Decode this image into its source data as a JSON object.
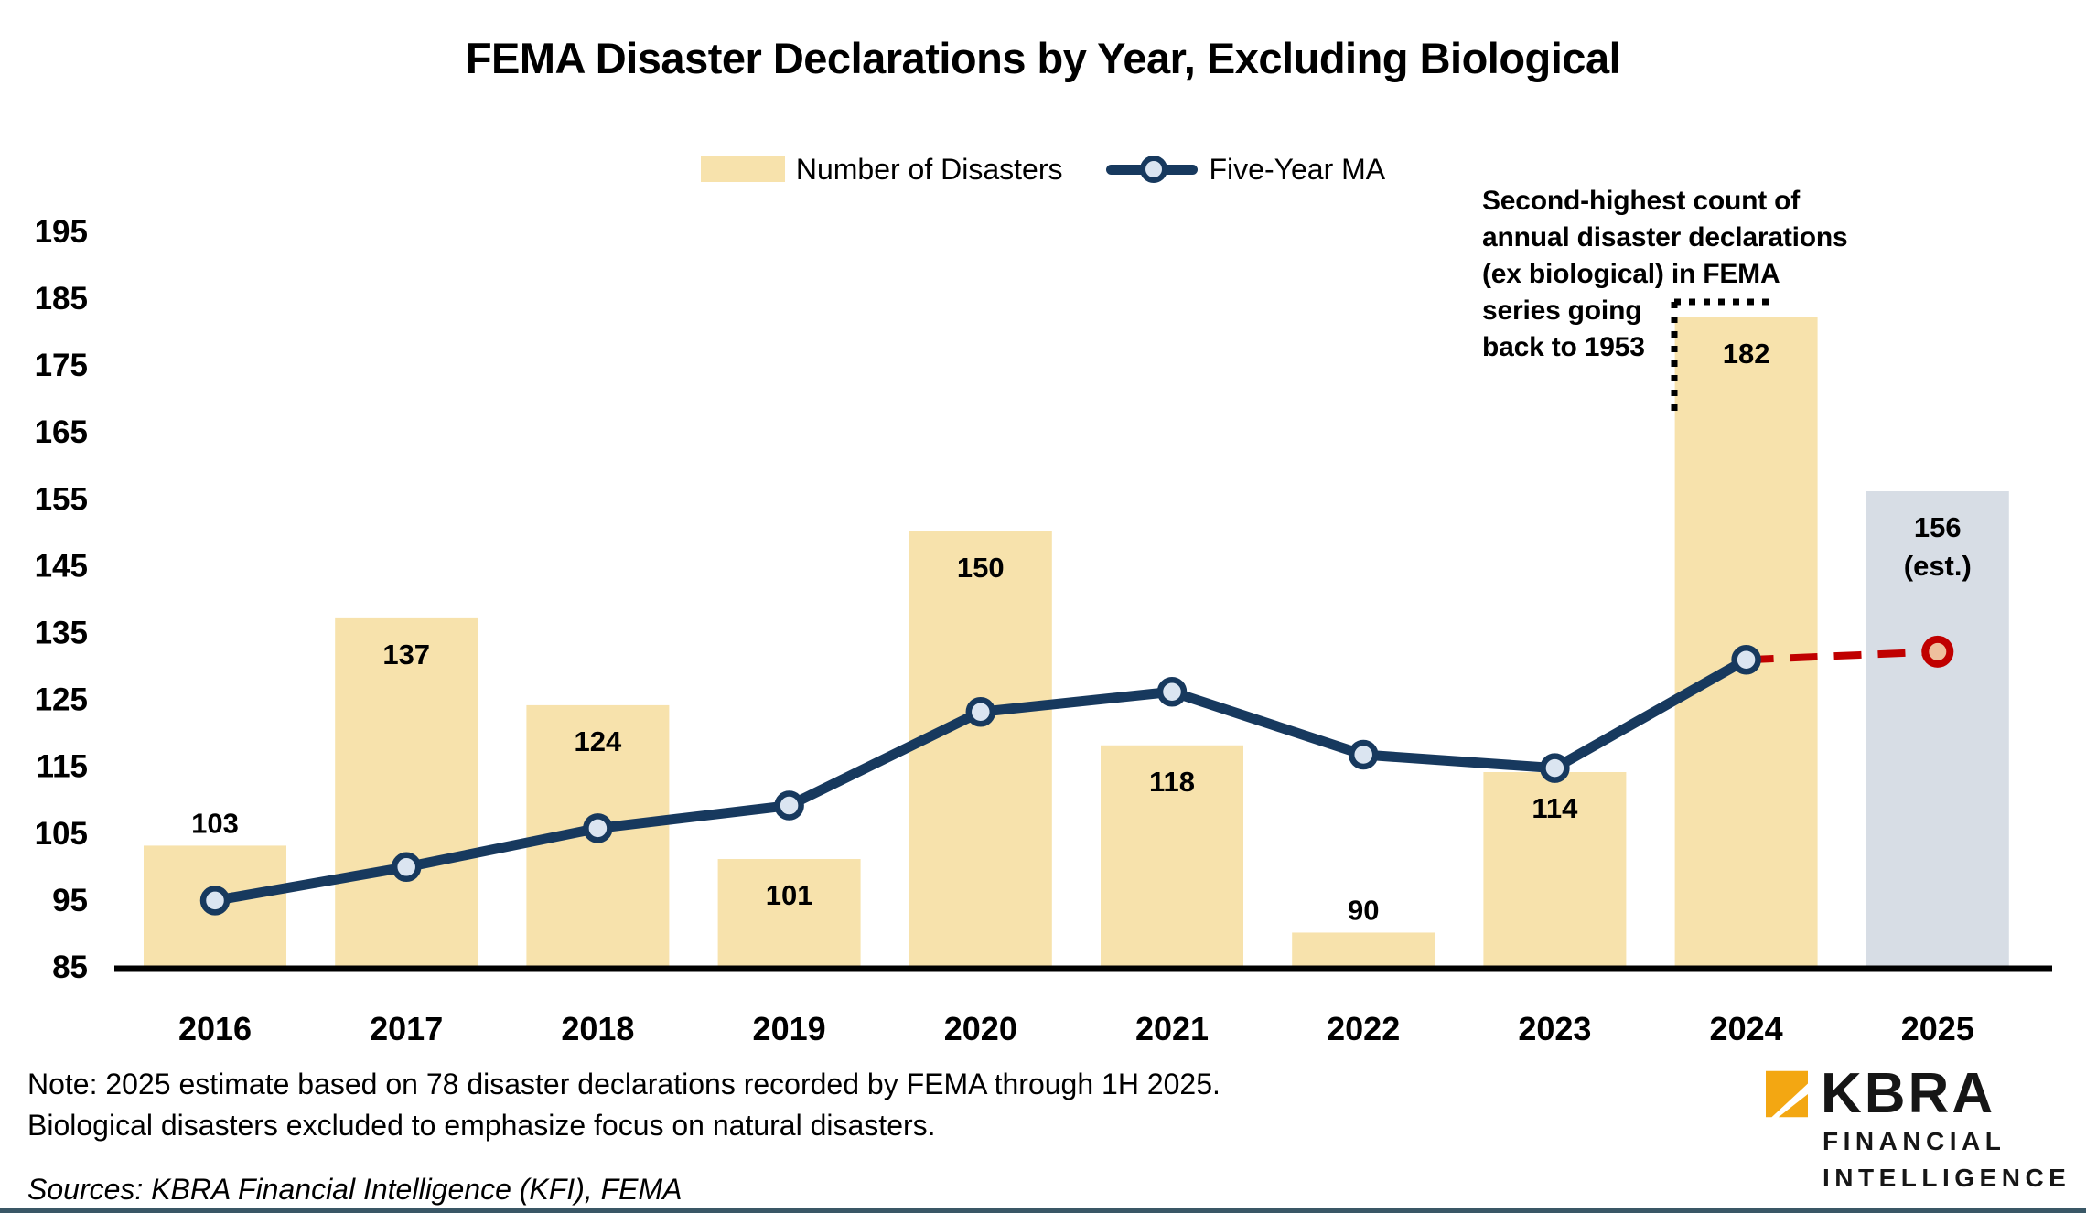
{
  "legend": [
    {
      "label": "Number of Disasters",
      "swatch": "bar"
    },
    {
      "label": "Five-Year MA",
      "swatch": "line-marker"
    }
  ],
  "annotation": {
    "text": "Second-highest count of\nannual disaster declarations\n(ex biological) in FEMA\nseries going\nback to 1953"
  },
  "notes": {
    "note": "Note: 2025 estimate based on 78 disaster declarations recorded by FEMA through 1H 2025.\nBiological disasters excluded to emphasize focus on natural disasters.",
    "sources": "Sources: KBRA Financial Intelligence (KFI), FEMA"
  },
  "logo": {
    "name": "KBRA",
    "line1": "FINANCIAL",
    "line2": "INTELLIGENCE"
  },
  "colors": {
    "bar": "#F7E2AC",
    "estimate_bar": "#D7DDE5",
    "line": "#17395E",
    "marker_fill": "#DBE5F1",
    "red": "#C00000",
    "red_marker_fill": "#EEC09E",
    "bracket": "#000000",
    "axis": "#000000",
    "text": "#000000",
    "accent_gold": "#F3A712",
    "footer_bar": "#3A5766"
  },
  "chart_data": {
    "type": "bar+line",
    "title": "FEMA Disaster Declarations by Year, Excluding Biological",
    "categories": [
      "2016",
      "2017",
      "2018",
      "2019",
      "2020",
      "2021",
      "2022",
      "2023",
      "2024",
      "2025"
    ],
    "series": [
      {
        "name": "Number of Disasters",
        "type": "bar",
        "values": [
          103,
          137,
          124,
          101,
          150,
          118,
          90,
          114,
          182,
          156
        ],
        "data_labels": [
          "103",
          "137",
          "124",
          "101",
          "150",
          "118",
          "90",
          "114",
          "182",
          "156\n(est.)"
        ],
        "label_placement": [
          "above",
          "inside",
          "inside",
          "inside",
          "inside",
          "inside",
          "above",
          "inside",
          "inside",
          "inside"
        ],
        "estimate_index": 9
      },
      {
        "name": "Five-Year MA",
        "type": "line",
        "values": [
          94.8,
          99.8,
          105.6,
          109.0,
          123.0,
          126.0,
          116.6,
          114.6,
          130.8,
          null
        ]
      }
    ],
    "forecast": {
      "category": "2025",
      "value": 132.0,
      "style": "red-dashed-connector"
    },
    "ylim": [
      85,
      195
    ],
    "yticks": [
      85,
      95,
      105,
      115,
      125,
      135,
      145,
      155,
      165,
      175,
      185,
      195
    ],
    "grid": false,
    "legend_position": "top",
    "annotation_target": "2024"
  }
}
